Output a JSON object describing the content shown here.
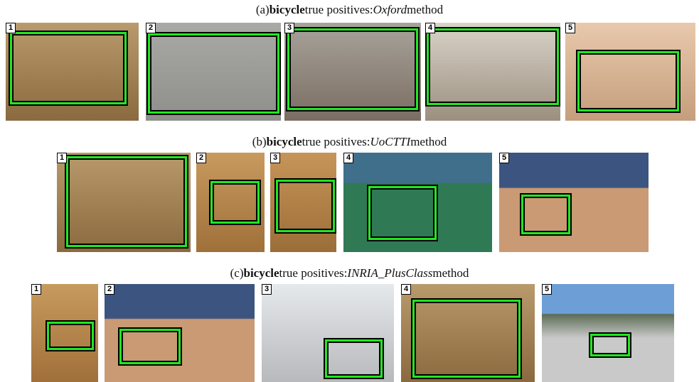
{
  "rows": [
    {
      "prefix": "(a)",
      "object": "bicycle",
      "middle": "true positives:",
      "method": "Oxford",
      "suffix": "method",
      "images": [
        {
          "number": "1"
        },
        {
          "number": "2"
        },
        {
          "number": "3"
        },
        {
          "number": "4"
        },
        {
          "number": "5"
        }
      ]
    },
    {
      "prefix": "(b)",
      "object": "bicycle",
      "middle": "true positives:",
      "method": "UoCTTI",
      "suffix": "method",
      "images": [
        {
          "number": "1"
        },
        {
          "number": "2"
        },
        {
          "number": "3"
        },
        {
          "number": "4"
        },
        {
          "number": "5"
        }
      ]
    },
    {
      "prefix": "(c)",
      "object": "bicycle",
      "middle": "true positives:",
      "method": "INRIA_PlusClass",
      "suffix": "method",
      "images": [
        {
          "number": "1"
        },
        {
          "number": "2"
        },
        {
          "number": "3"
        },
        {
          "number": "4"
        },
        {
          "number": "5"
        }
      ]
    }
  ]
}
